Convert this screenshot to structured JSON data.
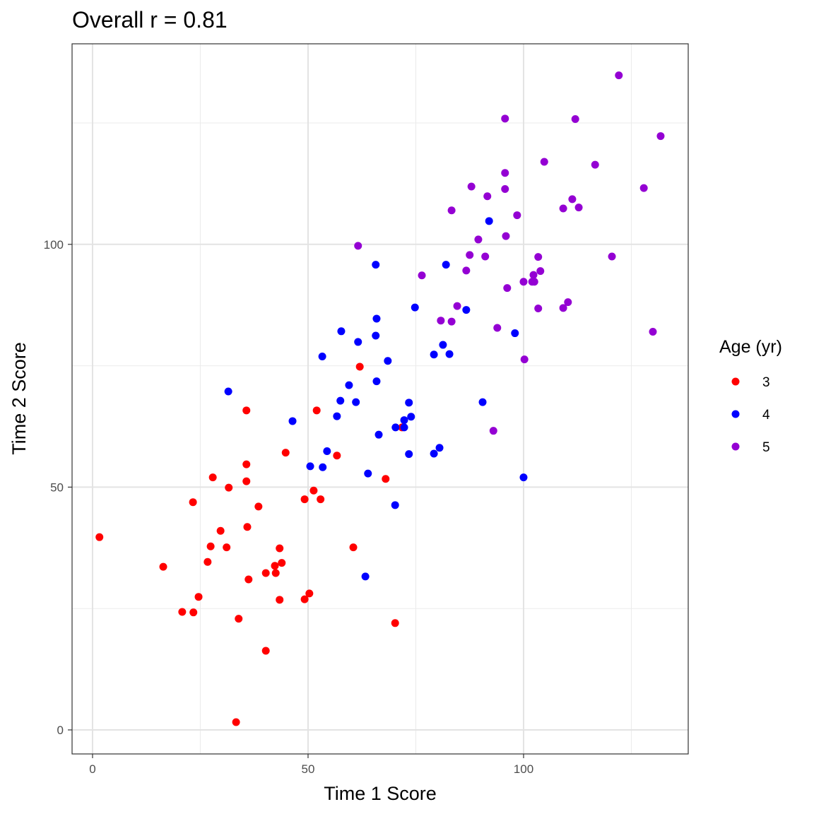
{
  "chart_data": {
    "type": "scatter",
    "title": "Overall r = 0.81",
    "xlabel": "Time 1 Score",
    "ylabel": "Time 2 Score",
    "xlim": [
      -4.75,
      138.2
    ],
    "ylim": [
      -4.95,
      141.3
    ],
    "xticks": [
      0,
      50,
      100
    ],
    "yticks": [
      0,
      50,
      100
    ],
    "xtick_labels": [
      "0",
      "50",
      "100"
    ],
    "ytick_labels": [
      "0",
      "50",
      "100"
    ],
    "grid": true,
    "legend": {
      "title": "Age (yr)",
      "placement": "right"
    },
    "series": [
      {
        "name": "3",
        "color": "#FF0000",
        "points": [
          [
            1.6,
            39.7
          ],
          [
            16.4,
            33.6
          ],
          [
            20.8,
            24.3
          ],
          [
            23.4,
            24.2
          ],
          [
            24.6,
            27.4
          ],
          [
            23.3,
            46.9
          ],
          [
            27.9,
            52.0
          ],
          [
            27.4,
            37.8
          ],
          [
            26.7,
            34.6
          ],
          [
            29.7,
            41.0
          ],
          [
            31.1,
            37.6
          ],
          [
            31.6,
            49.9
          ],
          [
            35.7,
            65.8
          ],
          [
            35.7,
            54.7
          ],
          [
            35.7,
            51.2
          ],
          [
            35.9,
            41.8
          ],
          [
            36.2,
            31.0
          ],
          [
            33.9,
            22.9
          ],
          [
            33.3,
            1.6
          ],
          [
            38.5,
            46.0
          ],
          [
            40.2,
            32.3
          ],
          [
            40.2,
            16.3
          ],
          [
            42.3,
            33.8
          ],
          [
            42.5,
            32.3
          ],
          [
            43.4,
            37.4
          ],
          [
            43.9,
            34.4
          ],
          [
            43.4,
            26.8
          ],
          [
            44.8,
            57.1
          ],
          [
            49.2,
            26.9
          ],
          [
            49.2,
            47.5
          ],
          [
            50.3,
            28.1
          ],
          [
            51.3,
            49.3
          ],
          [
            52.0,
            65.8
          ],
          [
            52.9,
            47.5
          ],
          [
            56.7,
            56.5
          ],
          [
            60.5,
            37.6
          ],
          [
            62.0,
            74.8
          ],
          [
            68.0,
            51.7
          ],
          [
            70.2,
            22.0
          ],
          [
            71.8,
            62.3
          ]
        ]
      },
      {
        "name": "4",
        "color": "#0000FF",
        "points": [
          [
            31.5,
            69.7
          ],
          [
            46.4,
            63.6
          ],
          [
            50.5,
            54.3
          ],
          [
            53.4,
            54.1
          ],
          [
            54.4,
            57.4
          ],
          [
            53.3,
            76.9
          ],
          [
            56.7,
            64.6
          ],
          [
            57.5,
            67.8
          ],
          [
            57.7,
            82.1
          ],
          [
            59.5,
            71.0
          ],
          [
            61.1,
            67.5
          ],
          [
            61.6,
            79.9
          ],
          [
            63.3,
            31.6
          ],
          [
            63.9,
            52.8
          ],
          [
            65.7,
            95.8
          ],
          [
            65.9,
            84.7
          ],
          [
            65.7,
            81.2
          ],
          [
            65.9,
            71.8
          ],
          [
            66.4,
            60.8
          ],
          [
            68.5,
            76.0
          ],
          [
            70.2,
            46.3
          ],
          [
            70.3,
            62.3
          ],
          [
            72.3,
            62.3
          ],
          [
            72.3,
            63.8
          ],
          [
            73.4,
            67.4
          ],
          [
            73.9,
            64.5
          ],
          [
            73.4,
            56.8
          ],
          [
            74.8,
            87.0
          ],
          [
            79.2,
            56.9
          ],
          [
            79.2,
            77.3
          ],
          [
            80.5,
            58.1
          ],
          [
            81.3,
            79.3
          ],
          [
            82.0,
            95.8
          ],
          [
            82.8,
            77.4
          ],
          [
            86.7,
            86.5
          ],
          [
            90.5,
            67.5
          ],
          [
            92.0,
            104.8
          ],
          [
            98.0,
            81.7
          ],
          [
            100.0,
            52.0
          ]
        ]
      },
      {
        "name": "5",
        "color": "#9400D3",
        "points": [
          [
            61.6,
            99.7
          ],
          [
            76.4,
            93.6
          ],
          [
            80.8,
            84.3
          ],
          [
            83.3,
            84.1
          ],
          [
            83.3,
            107.0
          ],
          [
            84.6,
            87.3
          ],
          [
            86.7,
            94.6
          ],
          [
            87.5,
            97.8
          ],
          [
            87.9,
            111.9
          ],
          [
            89.5,
            101.0
          ],
          [
            91.1,
            97.5
          ],
          [
            91.6,
            109.9
          ],
          [
            93.0,
            61.6
          ],
          [
            93.9,
            82.8
          ],
          [
            95.7,
            125.9
          ],
          [
            95.7,
            114.7
          ],
          [
            95.7,
            111.4
          ],
          [
            95.9,
            101.7
          ],
          [
            96.2,
            91.0
          ],
          [
            98.5,
            106.0
          ],
          [
            100.0,
            92.3
          ],
          [
            100.2,
            76.3
          ],
          [
            102.0,
            92.3
          ],
          [
            102.3,
            93.7
          ],
          [
            102.5,
            92.3
          ],
          [
            103.4,
            97.4
          ],
          [
            103.4,
            86.8
          ],
          [
            103.9,
            94.5
          ],
          [
            104.8,
            117.0
          ],
          [
            109.2,
            86.9
          ],
          [
            109.2,
            107.4
          ],
          [
            110.3,
            88.1
          ],
          [
            111.3,
            109.3
          ],
          [
            112.0,
            125.8
          ],
          [
            112.8,
            107.6
          ],
          [
            116.6,
            116.4
          ],
          [
            120.5,
            97.5
          ],
          [
            122.1,
            134.8
          ],
          [
            127.9,
            111.6
          ],
          [
            130.0,
            82.0
          ],
          [
            131.8,
            122.3
          ]
        ]
      }
    ]
  }
}
